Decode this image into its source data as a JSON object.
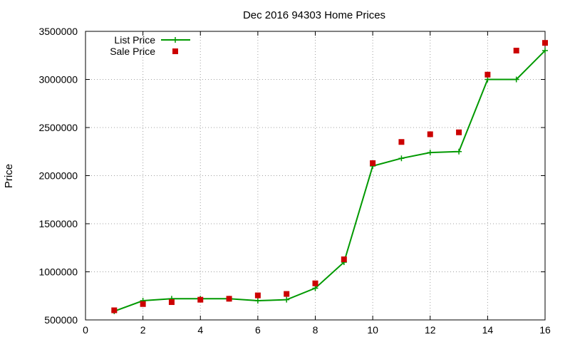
{
  "chart_data": {
    "type": "line",
    "title": "Dec 2016 94303 Home Prices",
    "xlabel": "",
    "ylabel": "Price",
    "xlim": [
      0,
      16
    ],
    "ylim": [
      500000,
      3500000
    ],
    "x_ticks": [
      "0",
      "2",
      "4",
      "6",
      "8",
      "10",
      "12",
      "14",
      "16"
    ],
    "y_ticks": [
      "500000",
      "1000000",
      "1500000",
      "2000000",
      "2500000",
      "3000000",
      "3500000"
    ],
    "grid": true,
    "legend_position": "top-left",
    "series": [
      {
        "name": "List Price",
        "style": "line-with-plus-markers",
        "color": "#009900",
        "x": [
          1,
          2,
          3,
          4,
          5,
          6,
          7,
          8,
          9,
          10,
          11,
          12,
          13,
          14,
          15,
          16
        ],
        "y": [
          590000,
          700000,
          720000,
          720000,
          720000,
          700000,
          710000,
          830000,
          1100000,
          2100000,
          2180000,
          2240000,
          2250000,
          3000000,
          3000000,
          3300000
        ]
      },
      {
        "name": "Sale Price",
        "style": "square-markers",
        "color": "#cc0000",
        "x": [
          1,
          2,
          3,
          4,
          5,
          6,
          7,
          8,
          9,
          10,
          11,
          12,
          13,
          14,
          15,
          16
        ],
        "y": [
          600000,
          665000,
          685000,
          710000,
          720000,
          755000,
          770000,
          880000,
          1130000,
          2130000,
          2350000,
          2430000,
          2450000,
          3050000,
          3300000,
          3380000
        ]
      }
    ]
  }
}
